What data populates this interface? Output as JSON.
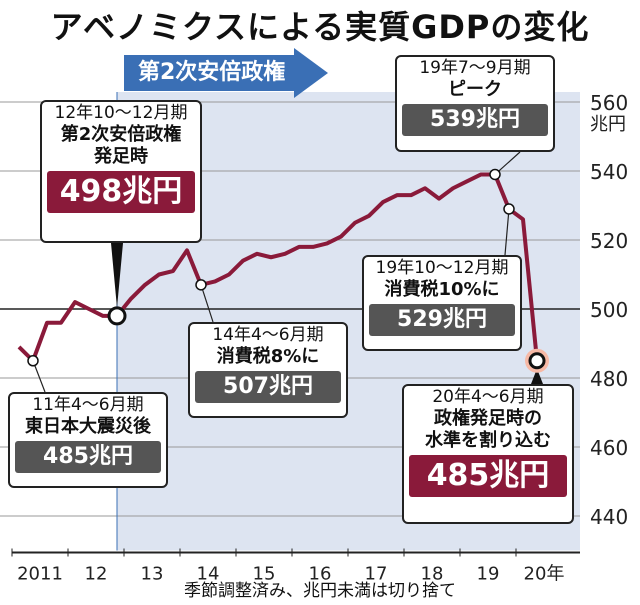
{
  "title": "アベノミクスによる実質GDPの変化",
  "note": "季節調整済み、兆円未満は切り捨て",
  "banner": "第2次安倍政権",
  "colors": {
    "line": "#8a1a3a",
    "shade": "#dde4f1",
    "accent_blue": "#3a6fb5",
    "value_box": "#555555"
  },
  "callouts": [
    {
      "id": "start",
      "period": "12年10～12月期",
      "event": "第2次安倍政権\n発足時",
      "value": "498兆円"
    },
    {
      "id": "quake",
      "period": "11年4～6月期",
      "event": "東日本大震災後",
      "value": "485兆円"
    },
    {
      "id": "tax8",
      "period": "14年4～6月期",
      "event": "消費税8%に",
      "value": "507兆円"
    },
    {
      "id": "peak",
      "period": "19年7～9月期",
      "event": "ピーク",
      "value": "539兆円"
    },
    {
      "id": "tax10",
      "period": "19年10～12月期",
      "event": "消費税10%に",
      "value": "529兆円"
    },
    {
      "id": "latest",
      "period": "20年4～6月期",
      "event": "政権発足時の\n水準を割り込む",
      "value": "485兆円"
    }
  ],
  "chart_data": {
    "type": "line",
    "y_unit": "兆円",
    "ylim": [
      430,
      565
    ],
    "yticks": [
      440,
      460,
      480,
      500,
      520,
      540,
      560
    ],
    "xticks": [
      "2011",
      "12",
      "13",
      "14",
      "15",
      "16",
      "17",
      "18",
      "19",
      "20年"
    ],
    "series": [
      {
        "x": [
          "2011Q1",
          "2011Q2",
          "2011Q3",
          "2011Q4",
          "2012Q1",
          "2012Q2",
          "2012Q3",
          "2012Q4",
          "2013Q1",
          "2013Q2",
          "2013Q3",
          "2013Q4",
          "2014Q1",
          "2014Q2",
          "2014Q3",
          "2014Q4",
          "2015Q1",
          "2015Q2",
          "2015Q3",
          "2015Q4",
          "2016Q1",
          "2016Q2",
          "2016Q3",
          "2016Q4",
          "2017Q1",
          "2017Q2",
          "2017Q3",
          "2017Q4",
          "2018Q1",
          "2018Q2",
          "2018Q3",
          "2018Q4",
          "2019Q1",
          "2019Q2",
          "2019Q3",
          "2019Q4",
          "2020Q1",
          "2020Q2"
        ],
        "values": [
          489,
          485,
          496,
          496,
          502,
          500,
          498,
          498,
          503,
          507,
          510,
          511,
          517,
          507,
          508,
          510,
          514,
          516,
          515,
          516,
          518,
          518,
          519,
          521,
          525,
          527,
          531,
          533,
          533,
          535,
          532,
          535,
          537,
          539,
          539,
          529,
          526,
          485
        ]
      }
    ],
    "highlight_x": [
      "2011Q2",
      "2012Q4",
      "2014Q2",
      "2019Q3",
      "2019Q4",
      "2020Q2"
    ],
    "shaded_from_x": "2012Q4"
  }
}
